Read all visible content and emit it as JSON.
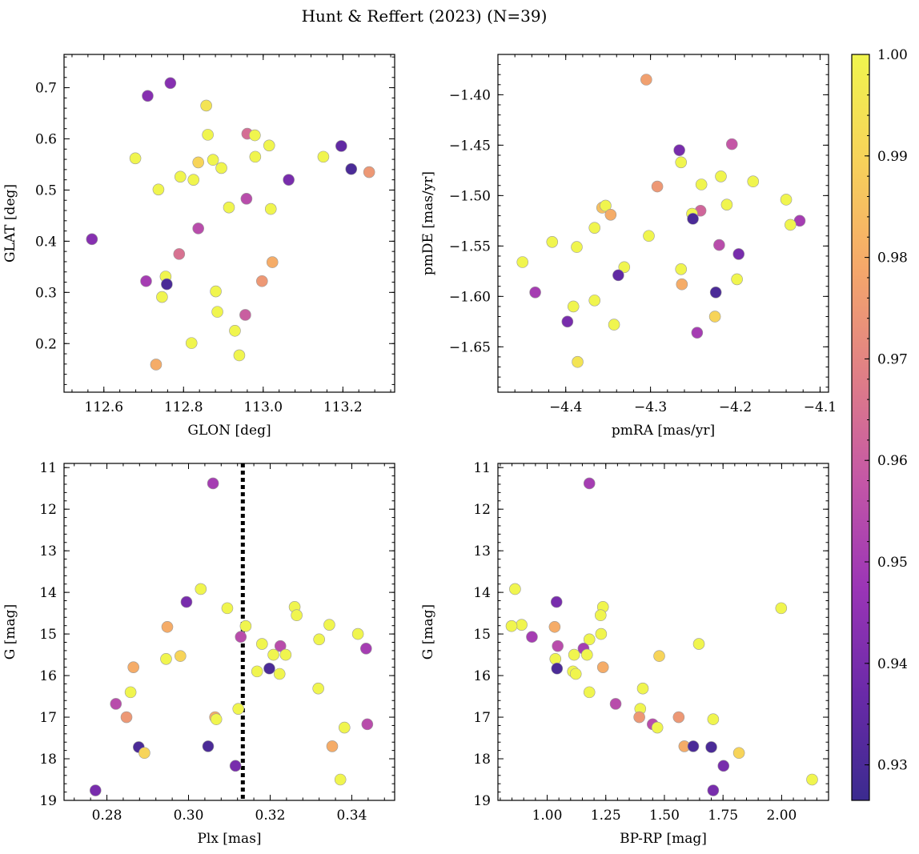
{
  "figure": {
    "title": "Hunt & Reffert (2023) (N=39)"
  },
  "colorbar": {
    "range": [
      0.9265,
      1.0
    ],
    "ticks": [
      0.93,
      0.94,
      0.95,
      0.96,
      0.97,
      0.98,
      0.99,
      1.0
    ],
    "tick_labels": [
      "0.93",
      "0.94",
      "0.95",
      "0.96",
      "0.97",
      "0.98",
      "0.99",
      "1.00"
    ],
    "colormap": "plasma",
    "colormap_stops": [
      "#3b2b8f",
      "#6a2aa8",
      "#9b35b6",
      "#c457a6",
      "#e07f86",
      "#f5a86a",
      "#f7d25a",
      "#f0f54e"
    ]
  },
  "chart_data": [
    {
      "type": "scatter",
      "title": "",
      "xlabel": "GLON [deg]",
      "ylabel": "GLAT [deg]",
      "xlim": [
        112.5,
        113.33
      ],
      "ylim": [
        0.105,
        0.765
      ],
      "invert_y": false,
      "grid": false,
      "xticks": [
        112.6,
        112.8,
        113.0,
        113.2
      ],
      "xtick_labels": [
        "112.6",
        "112.8",
        "113.0",
        "113.2"
      ],
      "yticks": [
        0.2,
        0.3,
        0.4,
        0.5,
        0.6,
        0.7
      ],
      "ytick_labels": [
        "0.2",
        "0.3",
        "0.4",
        "0.5",
        "0.6",
        "0.7"
      ],
      "points": [
        {
          "x": 112.767,
          "y": 0.709,
          "c": 0.943
        },
        {
          "x": 112.71,
          "y": 0.684,
          "c": 0.943
        },
        {
          "x": 112.857,
          "y": 0.665,
          "c": 0.995
        },
        {
          "x": 112.96,
          "y": 0.61,
          "c": 0.964
        },
        {
          "x": 112.979,
          "y": 0.607,
          "c": 1.0
        },
        {
          "x": 112.861,
          "y": 0.608,
          "c": 1.0
        },
        {
          "x": 113.196,
          "y": 0.586,
          "c": 0.935
        },
        {
          "x": 113.015,
          "y": 0.587,
          "c": 1.0
        },
        {
          "x": 113.151,
          "y": 0.565,
          "c": 1.0
        },
        {
          "x": 112.98,
          "y": 0.565,
          "c": 1.0
        },
        {
          "x": 112.679,
          "y": 0.562,
          "c": 1.0
        },
        {
          "x": 112.874,
          "y": 0.559,
          "c": 1.0
        },
        {
          "x": 112.837,
          "y": 0.554,
          "c": 0.99
        },
        {
          "x": 112.895,
          "y": 0.543,
          "c": 1.0
        },
        {
          "x": 113.221,
          "y": 0.541,
          "c": 0.93
        },
        {
          "x": 113.266,
          "y": 0.535,
          "c": 0.975
        },
        {
          "x": 112.792,
          "y": 0.526,
          "c": 1.0
        },
        {
          "x": 112.825,
          "y": 0.52,
          "c": 1.0
        },
        {
          "x": 113.064,
          "y": 0.52,
          "c": 0.94
        },
        {
          "x": 112.737,
          "y": 0.501,
          "c": 1.0
        },
        {
          "x": 112.958,
          "y": 0.483,
          "c": 0.955
        },
        {
          "x": 112.914,
          "y": 0.466,
          "c": 1.0
        },
        {
          "x": 113.019,
          "y": 0.463,
          "c": 1.0
        },
        {
          "x": 112.837,
          "y": 0.425,
          "c": 0.955
        },
        {
          "x": 112.57,
          "y": 0.404,
          "c": 0.943
        },
        {
          "x": 112.789,
          "y": 0.375,
          "c": 0.965
        },
        {
          "x": 113.023,
          "y": 0.359,
          "c": 0.98
        },
        {
          "x": 112.755,
          "y": 0.331,
          "c": 1.0
        },
        {
          "x": 112.706,
          "y": 0.322,
          "c": 0.95
        },
        {
          "x": 112.997,
          "y": 0.322,
          "c": 0.975
        },
        {
          "x": 112.758,
          "y": 0.316,
          "c": 0.93
        },
        {
          "x": 112.881,
          "y": 0.302,
          "c": 1.0
        },
        {
          "x": 112.746,
          "y": 0.291,
          "c": 1.0
        },
        {
          "x": 112.885,
          "y": 0.262,
          "c": 1.0
        },
        {
          "x": 112.955,
          "y": 0.256,
          "c": 0.96
        },
        {
          "x": 112.929,
          "y": 0.225,
          "c": 1.0
        },
        {
          "x": 112.82,
          "y": 0.201,
          "c": 1.0
        },
        {
          "x": 112.94,
          "y": 0.177,
          "c": 1.0
        },
        {
          "x": 112.731,
          "y": 0.159,
          "c": 0.98
        }
      ]
    },
    {
      "type": "scatter",
      "title": "",
      "xlabel": "pmRA [mas/yr]",
      "ylabel": "pmDE [mas/yr]",
      "xlim": [
        -4.48,
        -4.09
      ],
      "ylim": [
        -1.695,
        -1.36
      ],
      "invert_y": false,
      "grid": false,
      "xticks": [
        -4.4,
        -4.3,
        -4.2,
        -4.1
      ],
      "xtick_labels": [
        "−4.4",
        "−4.3",
        "−4.2",
        "−4.1"
      ],
      "yticks": [
        -1.65,
        -1.6,
        -1.55,
        -1.5,
        -1.45,
        -1.4
      ],
      "ytick_labels": [
        "−1.65",
        "−1.60",
        "−1.55",
        "−1.50",
        "−1.45",
        "−1.40"
      ],
      "points": [
        {
          "x": -4.305,
          "y": -1.385,
          "c": 0.977
        },
        {
          "x": -4.266,
          "y": -1.455,
          "c": 0.94
        },
        {
          "x": -4.204,
          "y": -1.449,
          "c": 0.958
        },
        {
          "x": -4.264,
          "y": -1.467,
          "c": 1.0
        },
        {
          "x": -4.217,
          "y": -1.481,
          "c": 1.0
        },
        {
          "x": -4.179,
          "y": -1.486,
          "c": 1.0
        },
        {
          "x": -4.292,
          "y": -1.491,
          "c": 0.975
        },
        {
          "x": -4.24,
          "y": -1.489,
          "c": 1.0
        },
        {
          "x": -4.14,
          "y": -1.504,
          "c": 1.0
        },
        {
          "x": -4.21,
          "y": -1.509,
          "c": 1.0
        },
        {
          "x": -4.357,
          "y": -1.512,
          "c": 0.985
        },
        {
          "x": -4.353,
          "y": -1.51,
          "c": 1.0
        },
        {
          "x": -4.347,
          "y": -1.519,
          "c": 0.98
        },
        {
          "x": -4.241,
          "y": -1.515,
          "c": 0.962
        },
        {
          "x": -4.251,
          "y": -1.518,
          "c": 1.0
        },
        {
          "x": -4.25,
          "y": -1.523,
          "c": 0.93
        },
        {
          "x": -4.124,
          "y": -1.525,
          "c": 0.95
        },
        {
          "x": -4.135,
          "y": -1.529,
          "c": 1.0
        },
        {
          "x": -4.366,
          "y": -1.532,
          "c": 1.0
        },
        {
          "x": -4.302,
          "y": -1.54,
          "c": 1.0
        },
        {
          "x": -4.416,
          "y": -1.546,
          "c": 1.0
        },
        {
          "x": -4.219,
          "y": -1.549,
          "c": 0.955
        },
        {
          "x": -4.387,
          "y": -1.551,
          "c": 1.0
        },
        {
          "x": -4.196,
          "y": -1.558,
          "c": 0.94
        },
        {
          "x": -4.451,
          "y": -1.566,
          "c": 1.0
        },
        {
          "x": -4.331,
          "y": -1.571,
          "c": 1.0
        },
        {
          "x": -4.264,
          "y": -1.573,
          "c": 1.0
        },
        {
          "x": -4.338,
          "y": -1.579,
          "c": 0.935
        },
        {
          "x": -4.198,
          "y": -1.583,
          "c": 1.0
        },
        {
          "x": -4.263,
          "y": -1.588,
          "c": 0.98
        },
        {
          "x": -4.223,
          "y": -1.596,
          "c": 0.93
        },
        {
          "x": -4.436,
          "y": -1.596,
          "c": 0.95
        },
        {
          "x": -4.366,
          "y": -1.604,
          "c": 1.0
        },
        {
          "x": -4.391,
          "y": -1.61,
          "c": 1.0
        },
        {
          "x": -4.224,
          "y": -1.62,
          "c": 0.99
        },
        {
          "x": -4.398,
          "y": -1.625,
          "c": 0.94
        },
        {
          "x": -4.343,
          "y": -1.628,
          "c": 1.0
        },
        {
          "x": -4.245,
          "y": -1.636,
          "c": 0.95
        },
        {
          "x": -4.386,
          "y": -1.665,
          "c": 0.995
        }
      ]
    },
    {
      "type": "scatter",
      "title": "",
      "xlabel": "Plx [mas]",
      "ylabel": "G [mag]",
      "xlim": [
        0.2695,
        0.3505
      ],
      "ylim": [
        19.0,
        10.9
      ],
      "invert_y": true,
      "grid": false,
      "xticks": [
        0.28,
        0.3,
        0.32,
        0.34
      ],
      "xtick_labels": [
        "0.28",
        "0.30",
        "0.32",
        "0.34"
      ],
      "yticks": [
        11,
        12,
        13,
        14,
        15,
        16,
        17,
        18,
        19
      ],
      "ytick_labels": [
        "11",
        "12",
        "13",
        "14",
        "15",
        "16",
        "17",
        "18",
        "19"
      ],
      "reference_line": {
        "x": 0.3133,
        "style": "dotted",
        "color": "#000000"
      },
      "points": [
        {
          "x": 0.306,
          "y": 11.38,
          "c": 0.95
        },
        {
          "x": 0.303,
          "y": 13.92,
          "c": 1.0
        },
        {
          "x": 0.2995,
          "y": 14.23,
          "c": 0.94
        },
        {
          "x": 0.326,
          "y": 14.35,
          "c": 1.0
        },
        {
          "x": 0.3095,
          "y": 14.38,
          "c": 1.0
        },
        {
          "x": 0.3265,
          "y": 14.55,
          "c": 1.0
        },
        {
          "x": 0.3345,
          "y": 14.78,
          "c": 1.0
        },
        {
          "x": 0.314,
          "y": 14.81,
          "c": 1.0
        },
        {
          "x": 0.2948,
          "y": 14.83,
          "c": 0.98
        },
        {
          "x": 0.3415,
          "y": 15.0,
          "c": 1.0
        },
        {
          "x": 0.3128,
          "y": 15.07,
          "c": 0.955
        },
        {
          "x": 0.332,
          "y": 15.13,
          "c": 1.0
        },
        {
          "x": 0.318,
          "y": 15.24,
          "c": 1.0
        },
        {
          "x": 0.3225,
          "y": 15.29,
          "c": 0.955
        },
        {
          "x": 0.3435,
          "y": 15.35,
          "c": 0.95
        },
        {
          "x": 0.3208,
          "y": 15.5,
          "c": 1.0
        },
        {
          "x": 0.3238,
          "y": 15.5,
          "c": 1.0
        },
        {
          "x": 0.298,
          "y": 15.53,
          "c": 0.99
        },
        {
          "x": 0.2945,
          "y": 15.6,
          "c": 1.0
        },
        {
          "x": 0.2865,
          "y": 15.8,
          "c": 0.98
        },
        {
          "x": 0.3198,
          "y": 15.83,
          "c": 0.93
        },
        {
          "x": 0.3168,
          "y": 15.9,
          "c": 1.0
        },
        {
          "x": 0.3223,
          "y": 15.96,
          "c": 1.0
        },
        {
          "x": 0.3318,
          "y": 16.31,
          "c": 1.0
        },
        {
          "x": 0.2858,
          "y": 16.4,
          "c": 1.0
        },
        {
          "x": 0.2822,
          "y": 16.68,
          "c": 0.955
        },
        {
          "x": 0.3122,
          "y": 16.8,
          "c": 1.0
        },
        {
          "x": 0.2848,
          "y": 17.0,
          "c": 0.975
        },
        {
          "x": 0.3065,
          "y": 17.0,
          "c": 0.98
        },
        {
          "x": 0.3068,
          "y": 17.05,
          "c": 1.0
        },
        {
          "x": 0.3438,
          "y": 17.17,
          "c": 0.955
        },
        {
          "x": 0.3382,
          "y": 17.25,
          "c": 1.0
        },
        {
          "x": 0.3048,
          "y": 17.7,
          "c": 0.93
        },
        {
          "x": 0.3352,
          "y": 17.7,
          "c": 0.98
        },
        {
          "x": 0.2878,
          "y": 17.72,
          "c": 0.93
        },
        {
          "x": 0.2892,
          "y": 17.86,
          "c": 0.99
        },
        {
          "x": 0.3115,
          "y": 18.17,
          "c": 0.94
        },
        {
          "x": 0.3372,
          "y": 18.5,
          "c": 1.0
        },
        {
          "x": 0.2772,
          "y": 18.76,
          "c": 0.94
        }
      ]
    },
    {
      "type": "scatter",
      "title": "",
      "xlabel": "BP-RP [mag]",
      "ylabel": "G [mag]",
      "xlim": [
        0.79,
        2.2
      ],
      "ylim": [
        19.0,
        10.9
      ],
      "invert_y": true,
      "grid": false,
      "xticks": [
        1.0,
        1.25,
        1.5,
        1.75,
        2.0
      ],
      "xtick_labels": [
        "1.00",
        "1.25",
        "1.50",
        "1.75",
        "2.00"
      ],
      "yticks": [
        11,
        12,
        13,
        14,
        15,
        16,
        17,
        18,
        19
      ],
      "ytick_labels": [
        "11",
        "12",
        "13",
        "14",
        "15",
        "16",
        "17",
        "18",
        "19"
      ],
      "points": [
        {
          "x": 1.18,
          "y": 11.38,
          "c": 0.95
        },
        {
          "x": 0.863,
          "y": 13.92,
          "c": 1.0
        },
        {
          "x": 1.04,
          "y": 14.23,
          "c": 0.94
        },
        {
          "x": 1.238,
          "y": 14.35,
          "c": 1.0
        },
        {
          "x": 1.998,
          "y": 14.38,
          "c": 1.0
        },
        {
          "x": 1.228,
          "y": 14.55,
          "c": 1.0
        },
        {
          "x": 0.891,
          "y": 14.78,
          "c": 1.0
        },
        {
          "x": 0.848,
          "y": 14.81,
          "c": 1.0
        },
        {
          "x": 1.032,
          "y": 14.83,
          "c": 0.98
        },
        {
          "x": 1.23,
          "y": 15.0,
          "c": 1.0
        },
        {
          "x": 0.935,
          "y": 15.07,
          "c": 0.95
        },
        {
          "x": 1.18,
          "y": 15.13,
          "c": 1.0
        },
        {
          "x": 1.647,
          "y": 15.24,
          "c": 1.0
        },
        {
          "x": 1.045,
          "y": 15.29,
          "c": 0.955
        },
        {
          "x": 1.155,
          "y": 15.35,
          "c": 0.95
        },
        {
          "x": 1.115,
          "y": 15.5,
          "c": 1.0
        },
        {
          "x": 1.17,
          "y": 15.5,
          "c": 1.0
        },
        {
          "x": 1.478,
          "y": 15.53,
          "c": 0.99
        },
        {
          "x": 1.035,
          "y": 15.6,
          "c": 1.0
        },
        {
          "x": 1.238,
          "y": 15.8,
          "c": 0.98
        },
        {
          "x": 1.042,
          "y": 15.83,
          "c": 0.93
        },
        {
          "x": 1.11,
          "y": 15.9,
          "c": 1.0
        },
        {
          "x": 1.122,
          "y": 15.96,
          "c": 1.0
        },
        {
          "x": 1.408,
          "y": 16.31,
          "c": 1.0
        },
        {
          "x": 1.18,
          "y": 16.4,
          "c": 1.0
        },
        {
          "x": 1.292,
          "y": 16.68,
          "c": 0.955
        },
        {
          "x": 1.397,
          "y": 16.8,
          "c": 1.0
        },
        {
          "x": 1.393,
          "y": 17.0,
          "c": 0.975
        },
        {
          "x": 1.561,
          "y": 17.0,
          "c": 0.975
        },
        {
          "x": 1.708,
          "y": 17.05,
          "c": 1.0
        },
        {
          "x": 1.45,
          "y": 17.17,
          "c": 0.955
        },
        {
          "x": 1.47,
          "y": 17.25,
          "c": 1.0
        },
        {
          "x": 1.585,
          "y": 17.7,
          "c": 0.98
        },
        {
          "x": 1.623,
          "y": 17.7,
          "c": 0.93
        },
        {
          "x": 1.7,
          "y": 17.72,
          "c": 0.93
        },
        {
          "x": 1.818,
          "y": 17.86,
          "c": 0.99
        },
        {
          "x": 1.752,
          "y": 18.17,
          "c": 0.94
        },
        {
          "x": 2.13,
          "y": 18.5,
          "c": 1.0
        },
        {
          "x": 1.708,
          "y": 18.76,
          "c": 0.94
        }
      ]
    }
  ]
}
